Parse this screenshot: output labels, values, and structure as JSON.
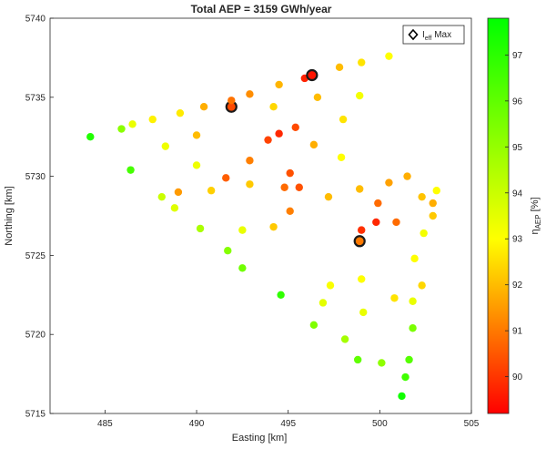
{
  "chart_data": {
    "type": "scatter",
    "title": "Total AEP = 3159 GWh/year",
    "xlabel": "Easting [km]",
    "ylabel": "Northing [km]",
    "xlim": [
      482,
      505
    ],
    "ylim": [
      5715,
      5740
    ],
    "xticks": [
      485,
      490,
      495,
      500,
      505
    ],
    "yticks": [
      5715,
      5720,
      5725,
      5730,
      5735,
      5740
    ],
    "grid": false,
    "legend": {
      "position": "top-right",
      "entries": [
        {
          "marker": "diamond",
          "label_main": "I",
          "label_sub": "eff",
          "label_rest": " Max"
        }
      ]
    },
    "colorbar": {
      "label_main": "η",
      "label_sub": "AEP",
      "label_rest": " [%]",
      "range": [
        89.2,
        97.8
      ],
      "ticks": [
        90,
        91,
        92,
        93,
        94,
        95,
        96,
        97
      ],
      "colormap": [
        {
          "v": 89.2,
          "color": "#ff0000"
        },
        {
          "v": 93.0,
          "color": "#ffff00"
        },
        {
          "v": 97.8,
          "color": "#00ff00"
        }
      ]
    },
    "points": [
      {
        "x": 484.2,
        "y": 5732.5,
        "eta": 97.2
      },
      {
        "x": 485.9,
        "y": 5733.0,
        "eta": 95.2
      },
      {
        "x": 486.5,
        "y": 5733.3,
        "eta": 93.4
      },
      {
        "x": 487.6,
        "y": 5733.6,
        "eta": 92.8
      },
      {
        "x": 489.1,
        "y": 5734.0,
        "eta": 92.7
      },
      {
        "x": 490.4,
        "y": 5734.4,
        "eta": 91.8
      },
      {
        "x": 491.9,
        "y": 5734.4,
        "eta": 90.3,
        "highlight": true
      },
      {
        "x": 491.9,
        "y": 5734.8,
        "eta": 90.9
      },
      {
        "x": 492.9,
        "y": 5735.2,
        "eta": 91.3
      },
      {
        "x": 494.5,
        "y": 5735.8,
        "eta": 91.9
      },
      {
        "x": 495.9,
        "y": 5736.2,
        "eta": 89.7
      },
      {
        "x": 496.3,
        "y": 5736.4,
        "eta": 89.5,
        "highlight": true
      },
      {
        "x": 497.8,
        "y": 5736.9,
        "eta": 92.0
      },
      {
        "x": 499.0,
        "y": 5737.2,
        "eta": 92.6
      },
      {
        "x": 500.5,
        "y": 5737.6,
        "eta": 93.0
      },
      {
        "x": 486.4,
        "y": 5730.4,
        "eta": 96.5
      },
      {
        "x": 488.3,
        "y": 5731.9,
        "eta": 93.3
      },
      {
        "x": 490.0,
        "y": 5732.6,
        "eta": 92.0
      },
      {
        "x": 490.0,
        "y": 5730.7,
        "eta": 93.3
      },
      {
        "x": 491.6,
        "y": 5729.9,
        "eta": 90.6
      },
      {
        "x": 492.9,
        "y": 5731.0,
        "eta": 91.1
      },
      {
        "x": 493.9,
        "y": 5732.3,
        "eta": 90.2
      },
      {
        "x": 494.5,
        "y": 5732.7,
        "eta": 89.8
      },
      {
        "x": 495.4,
        "y": 5733.1,
        "eta": 90.3
      },
      {
        "x": 494.2,
        "y": 5734.4,
        "eta": 92.4
      },
      {
        "x": 496.6,
        "y": 5735.0,
        "eta": 92.0
      },
      {
        "x": 498.9,
        "y": 5735.1,
        "eta": 93.2
      },
      {
        "x": 498.0,
        "y": 5733.6,
        "eta": 92.6
      },
      {
        "x": 496.4,
        "y": 5732.0,
        "eta": 91.8
      },
      {
        "x": 497.9,
        "y": 5731.2,
        "eta": 93.0
      },
      {
        "x": 488.1,
        "y": 5728.7,
        "eta": 94.0
      },
      {
        "x": 489.0,
        "y": 5729.0,
        "eta": 91.5
      },
      {
        "x": 490.8,
        "y": 5729.1,
        "eta": 92.3
      },
      {
        "x": 492.9,
        "y": 5729.5,
        "eta": 92.2
      },
      {
        "x": 495.1,
        "y": 5730.2,
        "eta": 90.4
      },
      {
        "x": 494.8,
        "y": 5729.3,
        "eta": 90.8
      },
      {
        "x": 495.6,
        "y": 5729.3,
        "eta": 90.4
      },
      {
        "x": 497.2,
        "y": 5728.7,
        "eta": 92.0
      },
      {
        "x": 498.9,
        "y": 5729.2,
        "eta": 92.0
      },
      {
        "x": 500.5,
        "y": 5729.6,
        "eta": 91.6
      },
      {
        "x": 501.5,
        "y": 5730.0,
        "eta": 91.8
      },
      {
        "x": 499.9,
        "y": 5728.3,
        "eta": 90.8
      },
      {
        "x": 495.1,
        "y": 5727.8,
        "eta": 91.1
      },
      {
        "x": 494.2,
        "y": 5726.8,
        "eta": 92.2
      },
      {
        "x": 492.5,
        "y": 5726.6,
        "eta": 93.4
      },
      {
        "x": 488.8,
        "y": 5728.0,
        "eta": 93.6
      },
      {
        "x": 490.2,
        "y": 5726.7,
        "eta": 94.6
      },
      {
        "x": 499.0,
        "y": 5726.6,
        "eta": 89.9
      },
      {
        "x": 499.8,
        "y": 5727.1,
        "eta": 89.8
      },
      {
        "x": 500.9,
        "y": 5727.1,
        "eta": 90.8
      },
      {
        "x": 498.9,
        "y": 5725.9,
        "eta": 91.0,
        "highlight": true
      },
      {
        "x": 502.3,
        "y": 5728.7,
        "eta": 92.1
      },
      {
        "x": 502.9,
        "y": 5728.3,
        "eta": 91.8
      },
      {
        "x": 503.1,
        "y": 5729.1,
        "eta": 93.0
      },
      {
        "x": 502.9,
        "y": 5727.5,
        "eta": 92.2
      },
      {
        "x": 502.4,
        "y": 5726.4,
        "eta": 93.2
      },
      {
        "x": 501.9,
        "y": 5724.8,
        "eta": 93.0
      },
      {
        "x": 491.7,
        "y": 5725.3,
        "eta": 95.3
      },
      {
        "x": 492.5,
        "y": 5724.2,
        "eta": 95.7
      },
      {
        "x": 499.0,
        "y": 5723.5,
        "eta": 93.0
      },
      {
        "x": 497.3,
        "y": 5723.1,
        "eta": 93.1
      },
      {
        "x": 502.3,
        "y": 5723.1,
        "eta": 92.4
      },
      {
        "x": 500.8,
        "y": 5722.3,
        "eta": 92.6
      },
      {
        "x": 494.6,
        "y": 5722.5,
        "eta": 96.9
      },
      {
        "x": 496.9,
        "y": 5722.0,
        "eta": 93.5
      },
      {
        "x": 501.8,
        "y": 5722.1,
        "eta": 93.4
      },
      {
        "x": 499.1,
        "y": 5721.4,
        "eta": 93.4
      },
      {
        "x": 496.4,
        "y": 5720.6,
        "eta": 95.4
      },
      {
        "x": 501.8,
        "y": 5720.4,
        "eta": 95.5
      },
      {
        "x": 498.1,
        "y": 5719.7,
        "eta": 94.7
      },
      {
        "x": 498.8,
        "y": 5718.4,
        "eta": 96.0
      },
      {
        "x": 500.1,
        "y": 5718.2,
        "eta": 95.1
      },
      {
        "x": 501.6,
        "y": 5718.4,
        "eta": 96.2
      },
      {
        "x": 501.4,
        "y": 5717.3,
        "eta": 96.6
      },
      {
        "x": 501.2,
        "y": 5716.1,
        "eta": 97.5
      }
    ]
  }
}
